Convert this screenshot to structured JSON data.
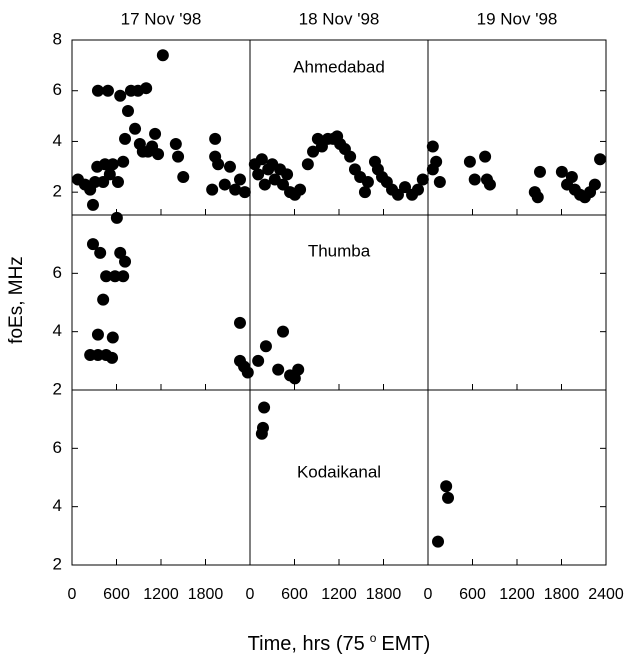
{
  "chart_data": {
    "type": "scatter",
    "ylabel": "foEs, MHz",
    "xlabel": [
      "Time, hrs (75",
      "o",
      "EMT)"
    ],
    "columns": [
      "17 Nov '98",
      "18 Nov '98",
      "19 Nov '98"
    ],
    "xlim": [
      0,
      2400
    ],
    "xticks": [
      0,
      600,
      1200,
      1800,
      2400
    ],
    "color": "#000000",
    "rows": [
      {
        "name": "Ahmedabad",
        "ylim": [
          1.1,
          8
        ],
        "yticks": [
          2,
          4,
          6,
          8
        ],
        "panels": [
          {
            "x": [
              80,
              175,
              245,
              283,
              310,
              340,
              350,
              420,
              445,
              485,
              510,
              550,
              620,
              650,
              690,
              715,
              755,
              795,
              850,
              890,
              915,
              955,
              1000,
              1025,
              1080,
              1120,
              1160,
              1225,
              1400,
              1430,
              1500,
              1930,
              1930,
              1890,
              1970,
              2060,
              2130,
              2200,
              2265,
              2330
            ],
            "y": [
              2.5,
              2.3,
              2.1,
              1.5,
              2.4,
              3.0,
              6.0,
              2.4,
              3.1,
              6.0,
              2.7,
              3.1,
              2.4,
              5.8,
              3.2,
              4.1,
              5.2,
              6.0,
              4.5,
              6.0,
              3.9,
              3.6,
              6.1,
              3.6,
              3.8,
              4.3,
              3.5,
              7.4,
              3.9,
              3.4,
              2.6,
              4.1,
              3.4,
              2.1,
              3.1,
              2.3,
              3.0,
              2.1,
              2.5,
              2.0
            ]
          },
          {
            "x": [
              65,
              110,
              160,
              200,
              245,
              300,
              335,
              405,
              445,
              500,
              540,
              605,
              675,
              780,
              850,
              915,
              970,
              1050,
              1120,
              1175,
              1215,
              1280,
              1350,
              1415,
              1485,
              1550,
              1590,
              1685,
              1725,
              1780,
              1845,
              1915,
              1995,
              2090,
              2185,
              2265,
              2330
            ],
            "y": [
              3.1,
              2.7,
              3.3,
              2.3,
              2.9,
              3.1,
              2.5,
              2.9,
              2.3,
              2.7,
              2.0,
              1.9,
              2.1,
              3.1,
              3.6,
              4.1,
              3.8,
              4.1,
              4.1,
              4.2,
              3.9,
              3.7,
              3.4,
              2.9,
              2.6,
              2.0,
              2.4,
              3.2,
              2.9,
              2.6,
              2.4,
              2.1,
              1.9,
              2.2,
              1.9,
              2.1,
              2.5
            ]
          },
          {
            "x": [
              65,
              110,
              65,
              160,
              565,
              630,
              770,
              795,
              835,
              1440,
              1480,
              1510,
              1805,
              1875,
              1940,
              1980,
              2050,
              2115,
              2185,
              2250,
              2320
            ],
            "y": [
              3.8,
              3.2,
              2.9,
              2.4,
              3.2,
              2.5,
              3.4,
              2.5,
              2.3,
              2.0,
              1.8,
              2.8,
              2.8,
              2.3,
              2.6,
              2.1,
              1.9,
              1.8,
              2.0,
              2.3,
              3.3
            ]
          }
        ]
      },
      {
        "name": "Thumba",
        "ylim": [
          2,
          8
        ],
        "yticks": [
          2,
          4,
          6
        ],
        "panels": [
          {
            "x": [
              245,
              283,
              350,
              350,
              380,
              420,
              460,
              460,
              540,
              550,
              580,
              605,
              650,
              690,
              715,
              2265,
              2265,
              2320,
              2370
            ],
            "y": [
              3.2,
              7.0,
              3.2,
              3.9,
              6.7,
              5.1,
              5.9,
              3.2,
              3.1,
              3.8,
              5.9,
              7.9,
              6.7,
              5.9,
              6.4,
              4.3,
              3.0,
              2.8,
              2.6
            ]
          },
          {
            "x": [
              110,
              215,
              380,
              445,
              540,
              605,
              650
            ],
            "y": [
              3.0,
              3.5,
              2.7,
              4.0,
              2.5,
              2.4,
              2.7
            ]
          },
          {
            "x": [],
            "y": []
          }
        ]
      },
      {
        "name": "Kodaikanal",
        "ylim": [
          2,
          8
        ],
        "yticks": [
          2,
          4,
          6
        ],
        "panels": [
          {
            "x": [],
            "y": []
          },
          {
            "x": [
              190,
              175,
              160
            ],
            "y": [
              7.4,
              6.7,
              6.5
            ]
          },
          {
            "x": [
              135,
              245,
              270
            ],
            "y": [
              2.8,
              4.7,
              4.3
            ]
          }
        ]
      }
    ]
  }
}
